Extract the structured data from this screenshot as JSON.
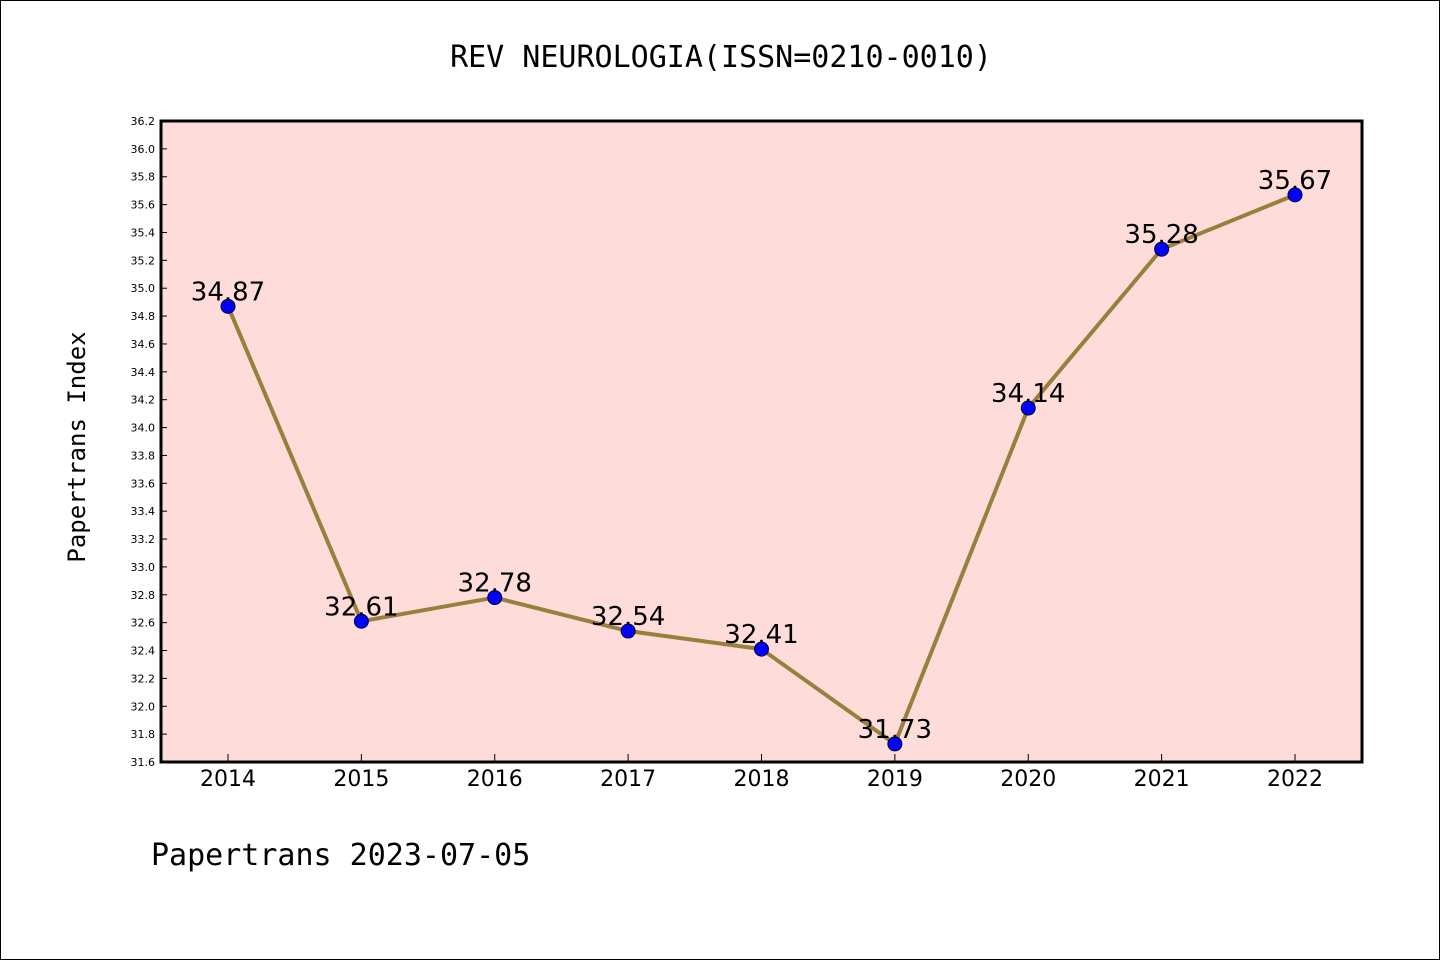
{
  "chart_data": {
    "type": "line",
    "title": "REV NEUROLOGIA(ISSN=0210-0010)",
    "xlabel": "",
    "ylabel": "Papertrans Index",
    "categories": [
      "2014",
      "2015",
      "2016",
      "2017",
      "2018",
      "2019",
      "2020",
      "2021",
      "2022"
    ],
    "values": [
      34.87,
      32.61,
      32.78,
      32.54,
      32.41,
      31.73,
      34.14,
      35.28,
      35.67
    ],
    "data_labels": [
      "34.87",
      "32.61",
      "32.78",
      "32.54",
      "32.41",
      "31.73",
      "34.14",
      "35.28",
      "35.67"
    ],
    "ylim": [
      31.6,
      36.2
    ],
    "yticks": [
      "31.6",
      "31.8",
      "32.0",
      "32.2",
      "32.4",
      "32.6",
      "32.8",
      "33.0",
      "33.2",
      "33.4",
      "33.6",
      "33.8",
      "34.0",
      "34.2",
      "34.4",
      "34.6",
      "34.8",
      "35.0",
      "35.2",
      "35.4",
      "35.6",
      "35.8",
      "36.0",
      "36.2"
    ],
    "grid": false,
    "legend": "none",
    "colors": {
      "plot_background": "#fddcda",
      "line": "#9a7f3c",
      "marker": "#0000ff",
      "axis": "#000000"
    }
  },
  "footer": "Papertrans 2023-07-05"
}
